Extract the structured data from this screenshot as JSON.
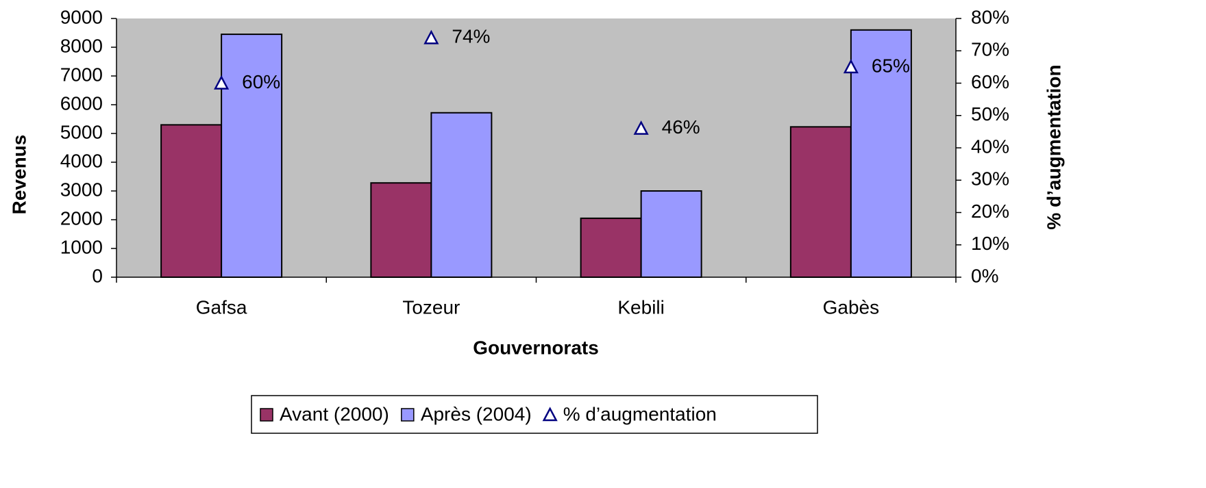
{
  "chart_data": {
    "type": "bar",
    "xlabel": "Gouvernorats",
    "ylabel": "Revenus",
    "y2label": "% d’augmentation",
    "categories": [
      "Gafsa",
      "Tozeur",
      "Kebili",
      "Gabès"
    ],
    "series": [
      {
        "name": "Avant (2000)",
        "color": "#993366",
        "values": [
          5300,
          3280,
          2050,
          5230
        ]
      },
      {
        "name": "Après (2004)",
        "color": "#9999ff",
        "values": [
          8450,
          5720,
          3000,
          8600
        ]
      },
      {
        "name": "% d’augmentation",
        "type": "scatter",
        "axis": "y2",
        "color": "#000080",
        "values": [
          60,
          74,
          46,
          65
        ],
        "value_labels": [
          "60%",
          "74%",
          "46%",
          "65%"
        ]
      }
    ],
    "ylim": [
      0,
      9000
    ],
    "yticks": [
      0,
      1000,
      2000,
      3000,
      4000,
      5000,
      6000,
      7000,
      8000,
      9000
    ],
    "y2lim": [
      0,
      80
    ],
    "y2ticks": [
      {
        "value": 0,
        "label": "0%"
      },
      {
        "value": 10,
        "label": "10%"
      },
      {
        "value": 20,
        "label": "20%"
      },
      {
        "value": 30,
        "label": "30%"
      },
      {
        "value": 40,
        "label": "40%"
      },
      {
        "value": 50,
        "label": "50%"
      },
      {
        "value": 60,
        "label": "60%"
      },
      {
        "value": 70,
        "label": "70%"
      },
      {
        "value": 80,
        "label": "80%"
      }
    ],
    "plot_background": "#c0c0c0",
    "legend": "bottom"
  }
}
